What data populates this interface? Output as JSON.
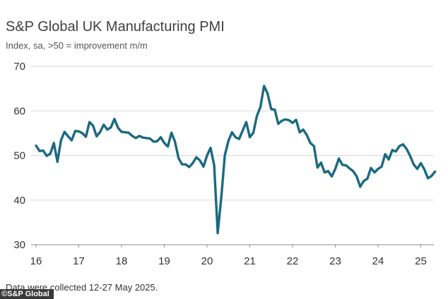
{
  "chart_data": {
    "type": "line",
    "title": "S&P Global UK Manufacturing PMI",
    "subtitle": "Index, sa, >50 = improvement m/m",
    "xlabel": "",
    "ylabel": "",
    "ylim": [
      30,
      70
    ],
    "yticks": [
      30,
      40,
      50,
      60,
      70
    ],
    "xticks": [
      "16",
      "17",
      "18",
      "19",
      "20",
      "21",
      "22",
      "23",
      "24",
      "25"
    ],
    "grid": true,
    "line_color": "#1a6a80",
    "series": [
      {
        "name": "",
        "values": [
          52.2,
          51.0,
          51.1,
          49.9,
          50.4,
          52.8,
          48.6,
          53.4,
          55.3,
          54.3,
          53.4,
          55.5,
          55.4,
          55.0,
          54.2,
          57.5,
          56.7,
          54.3,
          55.3,
          56.9,
          55.8,
          56.3,
          58.2,
          56.2,
          55.3,
          55.2,
          55.1,
          54.4,
          53.9,
          54.4,
          54.0,
          53.9,
          53.8,
          53.1,
          53.2,
          54.1,
          52.8,
          52.0,
          55.1,
          53.1,
          49.4,
          48.0,
          48.0,
          47.4,
          48.3,
          49.6,
          48.9,
          47.5,
          50.0,
          51.7,
          47.8,
          32.6,
          40.7,
          50.1,
          53.3,
          55.2,
          54.1,
          53.7,
          55.6,
          57.5,
          54.1,
          55.1,
          58.9,
          60.9,
          65.6,
          63.9,
          60.4,
          60.3,
          57.1,
          57.8,
          58.1,
          57.9,
          57.3,
          58.0,
          55.2,
          55.8,
          54.6,
          52.8,
          52.1,
          47.3,
          48.4,
          46.2,
          46.5,
          45.3,
          47.0,
          49.3,
          47.9,
          47.8,
          47.1,
          46.5,
          45.3,
          43.0,
          44.3,
          44.8,
          47.2,
          46.2,
          47.0,
          47.5,
          50.3,
          49.1,
          51.2,
          50.9,
          52.1,
          52.5,
          51.5,
          49.9,
          48.0,
          47.0,
          48.3,
          46.9,
          44.9,
          45.4,
          46.4
        ]
      }
    ]
  },
  "footer": {
    "note": "Data were collected 12-27 May 2025.",
    "brand": "©S&P Global"
  }
}
